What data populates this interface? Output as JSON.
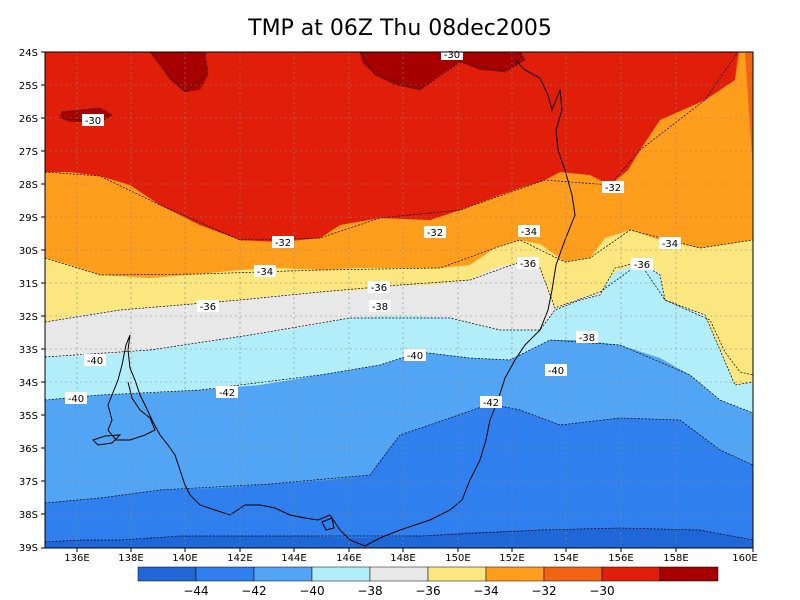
{
  "title": "TMP at 06Z Thu 08dec2005",
  "lat_labels": [
    "24S",
    "25S",
    "26S",
    "27S",
    "28S",
    "29S",
    "30S",
    "31S",
    "32S",
    "33S",
    "34S",
    "35S",
    "36S",
    "37S",
    "38S",
    "39S"
  ],
  "lon_labels": [
    "136E",
    "138E",
    "140E",
    "142E",
    "144E",
    "146E",
    "148E",
    "150E",
    "152E",
    "154E",
    "156E",
    "158E",
    "160E"
  ],
  "colorbar": {
    "colors": [
      "#1f66d6",
      "#2f80ee",
      "#52a4f4",
      "#b2eefa",
      "#e8e8e8",
      "#fce680",
      "#ff9e1c",
      "#f26314",
      "#e01e0a",
      "#a60000"
    ],
    "labels": [
      "-44",
      "-42",
      "-40",
      "-38",
      "-36",
      "-34",
      "-32",
      "-30"
    ]
  },
  "contour_labels": [
    {
      "text": "-30"
    },
    {
      "text": "-30"
    },
    {
      "text": "-32"
    },
    {
      "text": "-32"
    },
    {
      "text": "-32"
    },
    {
      "text": "-34"
    },
    {
      "text": "-34"
    },
    {
      "text": "-34"
    },
    {
      "text": "-36"
    },
    {
      "text": "-36"
    },
    {
      "text": "-36"
    },
    {
      "text": "-36"
    },
    {
      "text": "-38"
    },
    {
      "text": "-38"
    },
    {
      "text": "-40"
    },
    {
      "text": "-40"
    },
    {
      "text": "-40"
    },
    {
      "text": "-40"
    },
    {
      "text": "-42"
    },
    {
      "text": "-42"
    }
  ]
}
